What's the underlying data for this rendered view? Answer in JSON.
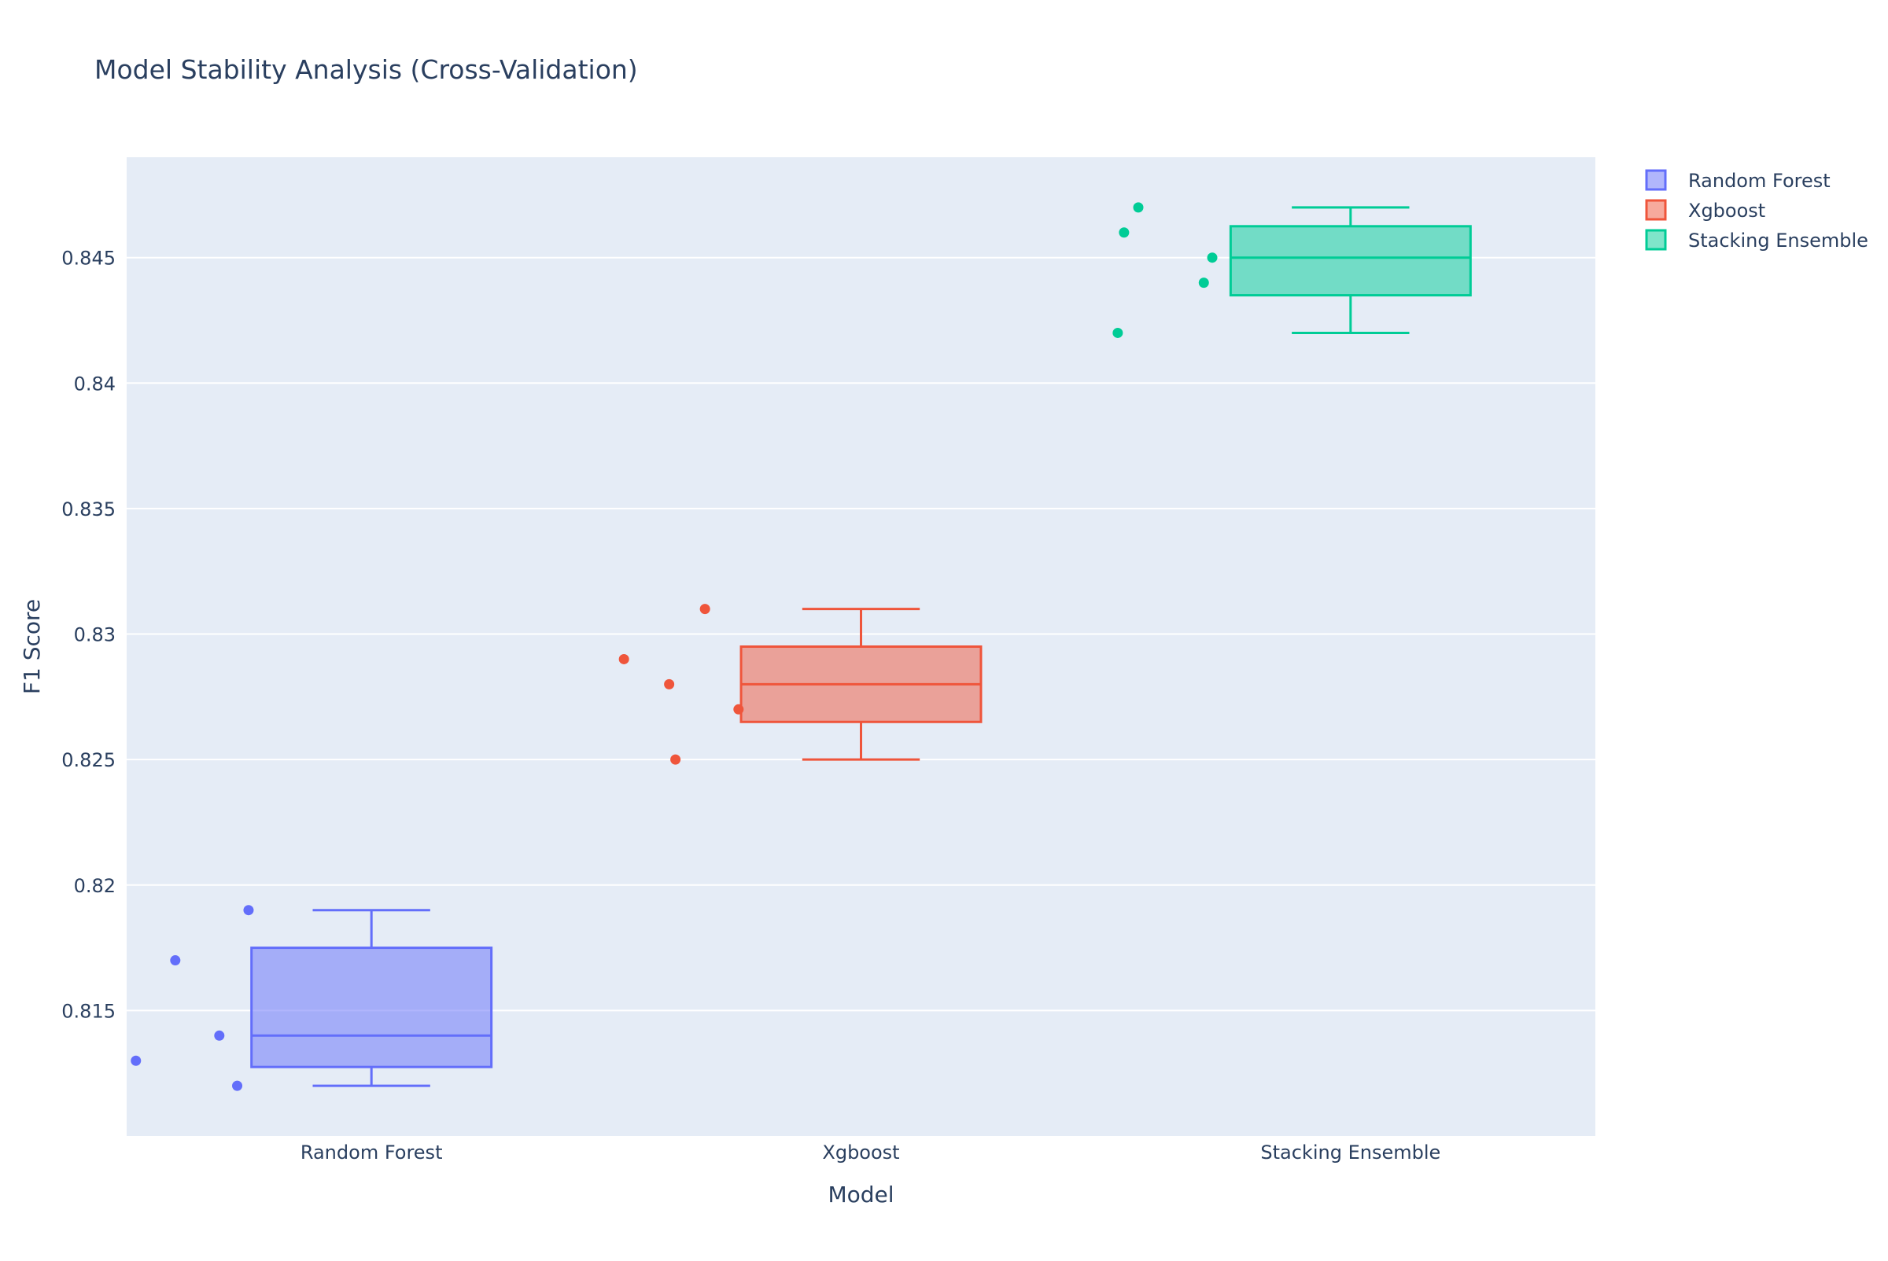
{
  "chart_data": {
    "type": "box",
    "title": "Model Stability Analysis (Cross-Validation)",
    "xlabel": "Model",
    "ylabel": "F1 Score",
    "categories": [
      "Random Forest",
      "Xgboost",
      "Stacking Ensemble"
    ],
    "ylim": [
      0.81,
      0.849
    ],
    "yticks": [
      {
        "value": 0.815,
        "label": "0.815"
      },
      {
        "value": 0.82,
        "label": "0.82"
      },
      {
        "value": 0.825,
        "label": "0.825"
      },
      {
        "value": 0.83,
        "label": "0.83"
      },
      {
        "value": 0.835,
        "label": "0.835"
      },
      {
        "value": 0.84,
        "label": "0.84"
      },
      {
        "value": 0.845,
        "label": "0.845"
      }
    ],
    "grid": true,
    "legend_position": "top-right",
    "plot_background": "#e5ecf6",
    "series": [
      {
        "name": "Random Forest",
        "color": "#636efa",
        "fill": "rgba(99,110,250,0.5)",
        "points": [
          0.819,
          0.817,
          0.813,
          0.814,
          0.812
        ],
        "q1": 0.81275,
        "median": 0.814,
        "q3": 0.8175,
        "whisker_low": 0.812,
        "whisker_high": 0.819
      },
      {
        "name": "Xgboost",
        "color": "#ef553b",
        "fill": "rgba(239,85,59,0.5)",
        "points": [
          0.831,
          0.829,
          0.828,
          0.827,
          0.825
        ],
        "q1": 0.8265,
        "median": 0.828,
        "q3": 0.8295,
        "whisker_low": 0.825,
        "whisker_high": 0.831
      },
      {
        "name": "Stacking Ensemble",
        "color": "#00cc96",
        "fill": "rgba(0,204,150,0.5)",
        "points": [
          0.847,
          0.846,
          0.845,
          0.844,
          0.842
        ],
        "q1": 0.8435,
        "median": 0.845,
        "q3": 0.84625,
        "whisker_low": 0.842,
        "whisker_high": 0.847
      }
    ]
  }
}
